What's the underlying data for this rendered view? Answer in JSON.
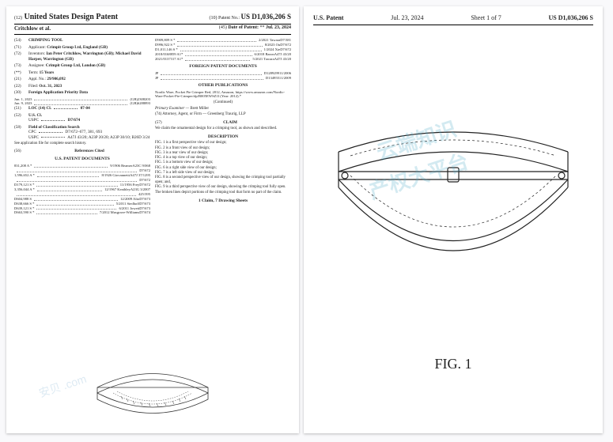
{
  "left": {
    "header": {
      "num12": "(12)",
      "title": "United States Design Patent",
      "authors": "Critchlow et al.",
      "num10": "(10)",
      "pn_label": "Patent No.:",
      "pn": "US D1,036,206 S",
      "num45": "(45)",
      "dp_label": "Date of Patent:",
      "dp_stars": "**",
      "dp": "Jul. 23, 2024"
    },
    "fields": {
      "f54n": "(54)",
      "f54": "CRIMPING TOOL",
      "f71n": "(71)",
      "f71l": "Applicant:",
      "f71v": "Crimpit Group Ltd, England (GB)",
      "f72n": "(72)",
      "f72l": "Inventors:",
      "f72v": "Ian Peter Critchlow, Warrington (GB); Michael David Harper, Warrington (GB)",
      "f73n": "(73)",
      "f73l": "Assignee:",
      "f73v": "Crimpit Group Ltd, London (GB)",
      "fttn": "(**)",
      "fttl": "Term:",
      "fttv": "15 Years",
      "f21n": "(21)",
      "f21l": "Appl. No.:",
      "f21v": "29/906,092",
      "f22n": "(22)",
      "f22l": "Filed:",
      "f22v": "Oct. 31, 2023",
      "f30n": "(30)",
      "f30l": "Foreign Application Priority Data",
      "prio1d": "Jun. 1, 2023",
      "prio1c": "(GB)",
      "prio1n": "2308203",
      "prio2d": "Jun. 9, 2023",
      "prio2c": "(GB)",
      "prio2n": "6288893",
      "f51n": "(51)",
      "f51l": "LOC (14) Cl.",
      "f51v": "07-04",
      "f52n": "(52)",
      "f52l": "U.S. Cl.",
      "f52u": "USPC",
      "f52v": "D7/674",
      "f58n": "(58)",
      "f58l": "Field of Classification Search",
      "f58c": "CPC",
      "f58cv": "D7/672–677, 381, 693",
      "f58u": "USPC",
      "f58uv": "A47J 43/20; A23P 20/20; A23P 30/10; B26D 3/24",
      "f58note": "See application file for complete search history.",
      "f56n": "(56)",
      "f56l": "References Cited",
      "uspd_title": "U.S. PATENT DOCUMENTS",
      "refs": [
        {
          "a": "831,208 A *",
          "b": "9/1906 Beamer",
          "c": "A23C 9/068"
        },
        {
          "a": "",
          "b": "",
          "c": "D7/672"
        },
        {
          "a": "1,596,652 A *",
          "b": "8/1926 Giovannetti",
          "c": "A47J 37/1295"
        },
        {
          "a": "",
          "b": "",
          "c": "D7/672"
        },
        {
          "a": "D179,121 S *",
          "b": "11/1956 Frey",
          "c": "D7/672"
        },
        {
          "a": "3,356,044 A *",
          "b": "12/1967 Keathley",
          "c": "A23G 3/2007"
        },
        {
          "a": "",
          "b": "",
          "c": "425/395"
        },
        {
          "a": "D604,988 S",
          "b": "12/2009 Alto",
          "c": "D7/673"
        },
        {
          "a": "D638,666 S *",
          "b": "5/2011 Siedhoff",
          "c": "D7/673"
        },
        {
          "a": "D639,121 S *",
          "b": "6/2011 Jowett",
          "c": "D7/673"
        },
        {
          "a": "D663,590 S *",
          "b": "7/2012 Musgrave-Williams",
          "c": "D7/674"
        }
      ]
    },
    "right_col": {
      "toprefs": [
        {
          "a": "D909,809 S *",
          "b": "2/2021 Tawara",
          "c": "D7/381"
        },
        {
          "a": "D996,922 S *",
          "b": "8/2023 Ou",
          "c": "D7/672"
        },
        {
          "a": "D1,011,146 S *",
          "b": "1/2024 Xie",
          "c": "D7/672"
        },
        {
          "a": "2018/0168859 A1*",
          "b": "6/2018 Baron",
          "c": "A47J 43/20"
        },
        {
          "a": "2021/0137317 A1*",
          "b": "5/2021 Tawara",
          "c": "A47J 43/20"
        }
      ],
      "fpd_title": "FOREIGN PATENT DOCUMENTS",
      "fpd": [
        {
          "a": "JP",
          "b": "D1289299",
          "c": "11/2006"
        },
        {
          "a": "JP",
          "b": "D1349551",
          "c": "1/2009"
        }
      ],
      "other_title": "OTHER PUBLICATIONS",
      "other": "Nordic Ware, Pocket Pie Crimper Red, 2012, Amazon, https://www.amazon.com/Nordic-Ware-Pocket-Pie-Crimper/dp/B005EWSZ1I (Year: 2012).*",
      "continued": "(Continued)",
      "exam_l": "Primary Examiner —",
      "exam_v": "Brett Miller",
      "atty_l": "(74) Attorney, Agent, or Firm —",
      "atty_v": "Greenberg Traurig, LLP",
      "n57": "(57)",
      "claim_title": "CLAIM",
      "claim_text": "We claim the ornamental design for a crimping tool, as shown and described.",
      "desc_title": "DESCRIPTION",
      "desc": [
        "FIG. 1 is a first perspective view of our design;",
        "FIG. 2 is a front view of our design;",
        "FIG. 3 is a rear view of our design;",
        "FIG. 4 is a top view of our design;",
        "FIG. 5 is a bottom view of our design;",
        "FIG. 6 is a right side view of our design;",
        "FIG. 7 is a left side view of our design;",
        "FIG. 8 is a second perspective view of our design, showing the crimping tool partially open; and,",
        "FIG. 9 is a third perspective view of our design, showing the crimping tool fully open.",
        "The broken lines depict portions of the crimping tool that form no part of the claim."
      ],
      "bottom": "1 Claim, 7 Drawing Sheets"
    }
  },
  "right": {
    "hdr_l": "U.S. Patent",
    "hdr_c": "Jul. 23, 2024",
    "hdr_s": "Sheet 1 of 7",
    "hdr_r": "US D1,036,206 S",
    "figcap": "FIG. 1"
  },
  "wm": {
    "line1": "云端知识",
    "line2": "产权大平台",
    "small": "安贝 .com"
  }
}
